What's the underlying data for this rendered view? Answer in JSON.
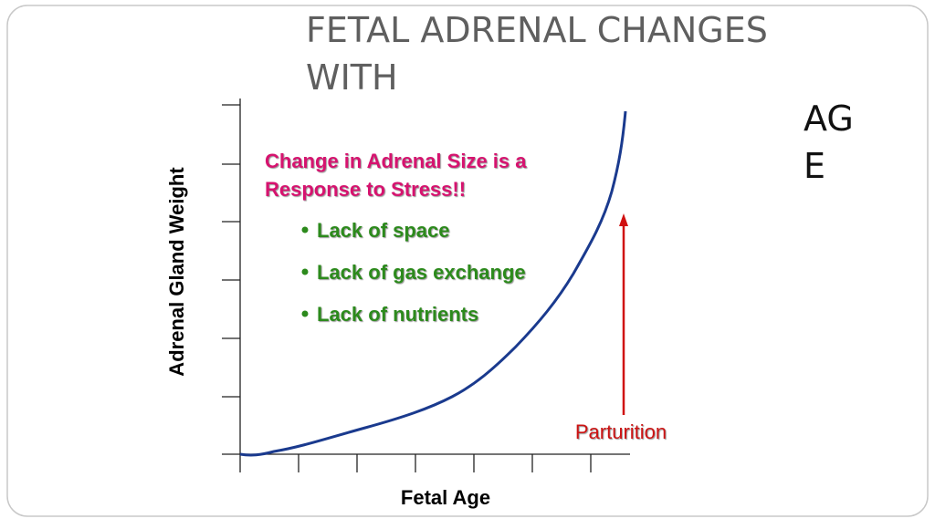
{
  "slide": {
    "title_lines": [
      "FETAL ADRENAL CHANGES",
      "WITH"
    ],
    "side_lines": [
      "AG",
      "E"
    ],
    "diagram": {
      "y_axis_label": "Adrenal Gland Weight",
      "x_axis_label": "Fetal Age",
      "heading_lines": [
        "Change in Adrenal Size is a",
        "Response to Stress!!"
      ],
      "bullets": [
        "Lack of space",
        "Lack of gas exchange",
        "Lack of nutrients"
      ],
      "arrow_label": "Parturition"
    }
  }
}
